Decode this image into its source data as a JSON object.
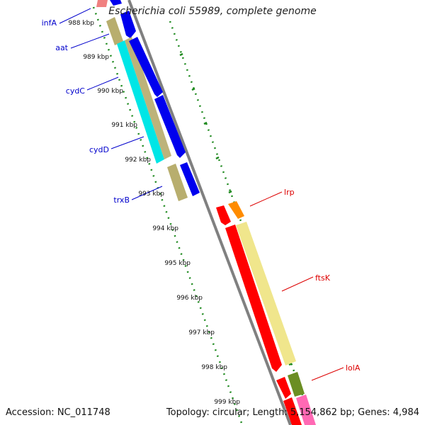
{
  "title": "Escherichia coli 55989, complete genome",
  "footer": {
    "accession": "Accession: NC_011748",
    "summary": "Topology: circular; Length: 5,154,862 bp; Genes: 4,984"
  },
  "colors": {
    "backbone": "#808080",
    "ticks": "#1f8a1f",
    "forward_label": "#0000cc",
    "reverse_label": "#dd0000"
  },
  "scale_labels": [
    "988 kbp",
    "989 kbp",
    "990 kbp",
    "991 kbp",
    "992 kbp",
    "993 kbp",
    "994 kbp",
    "995 kbp",
    "996 kbp",
    "997 kbp",
    "998 kbp",
    "999 kbp"
  ],
  "gene_labels": [
    {
      "name": "infA",
      "strand": "left"
    },
    {
      "name": "aat",
      "strand": "left"
    },
    {
      "name": "cydC",
      "strand": "left"
    },
    {
      "name": "cydD",
      "strand": "left"
    },
    {
      "name": "trxB",
      "strand": "left"
    },
    {
      "name": "lrp",
      "strand": "right"
    },
    {
      "name": "ftsK",
      "strand": "right"
    },
    {
      "name": "lolA",
      "strand": "right"
    }
  ]
}
